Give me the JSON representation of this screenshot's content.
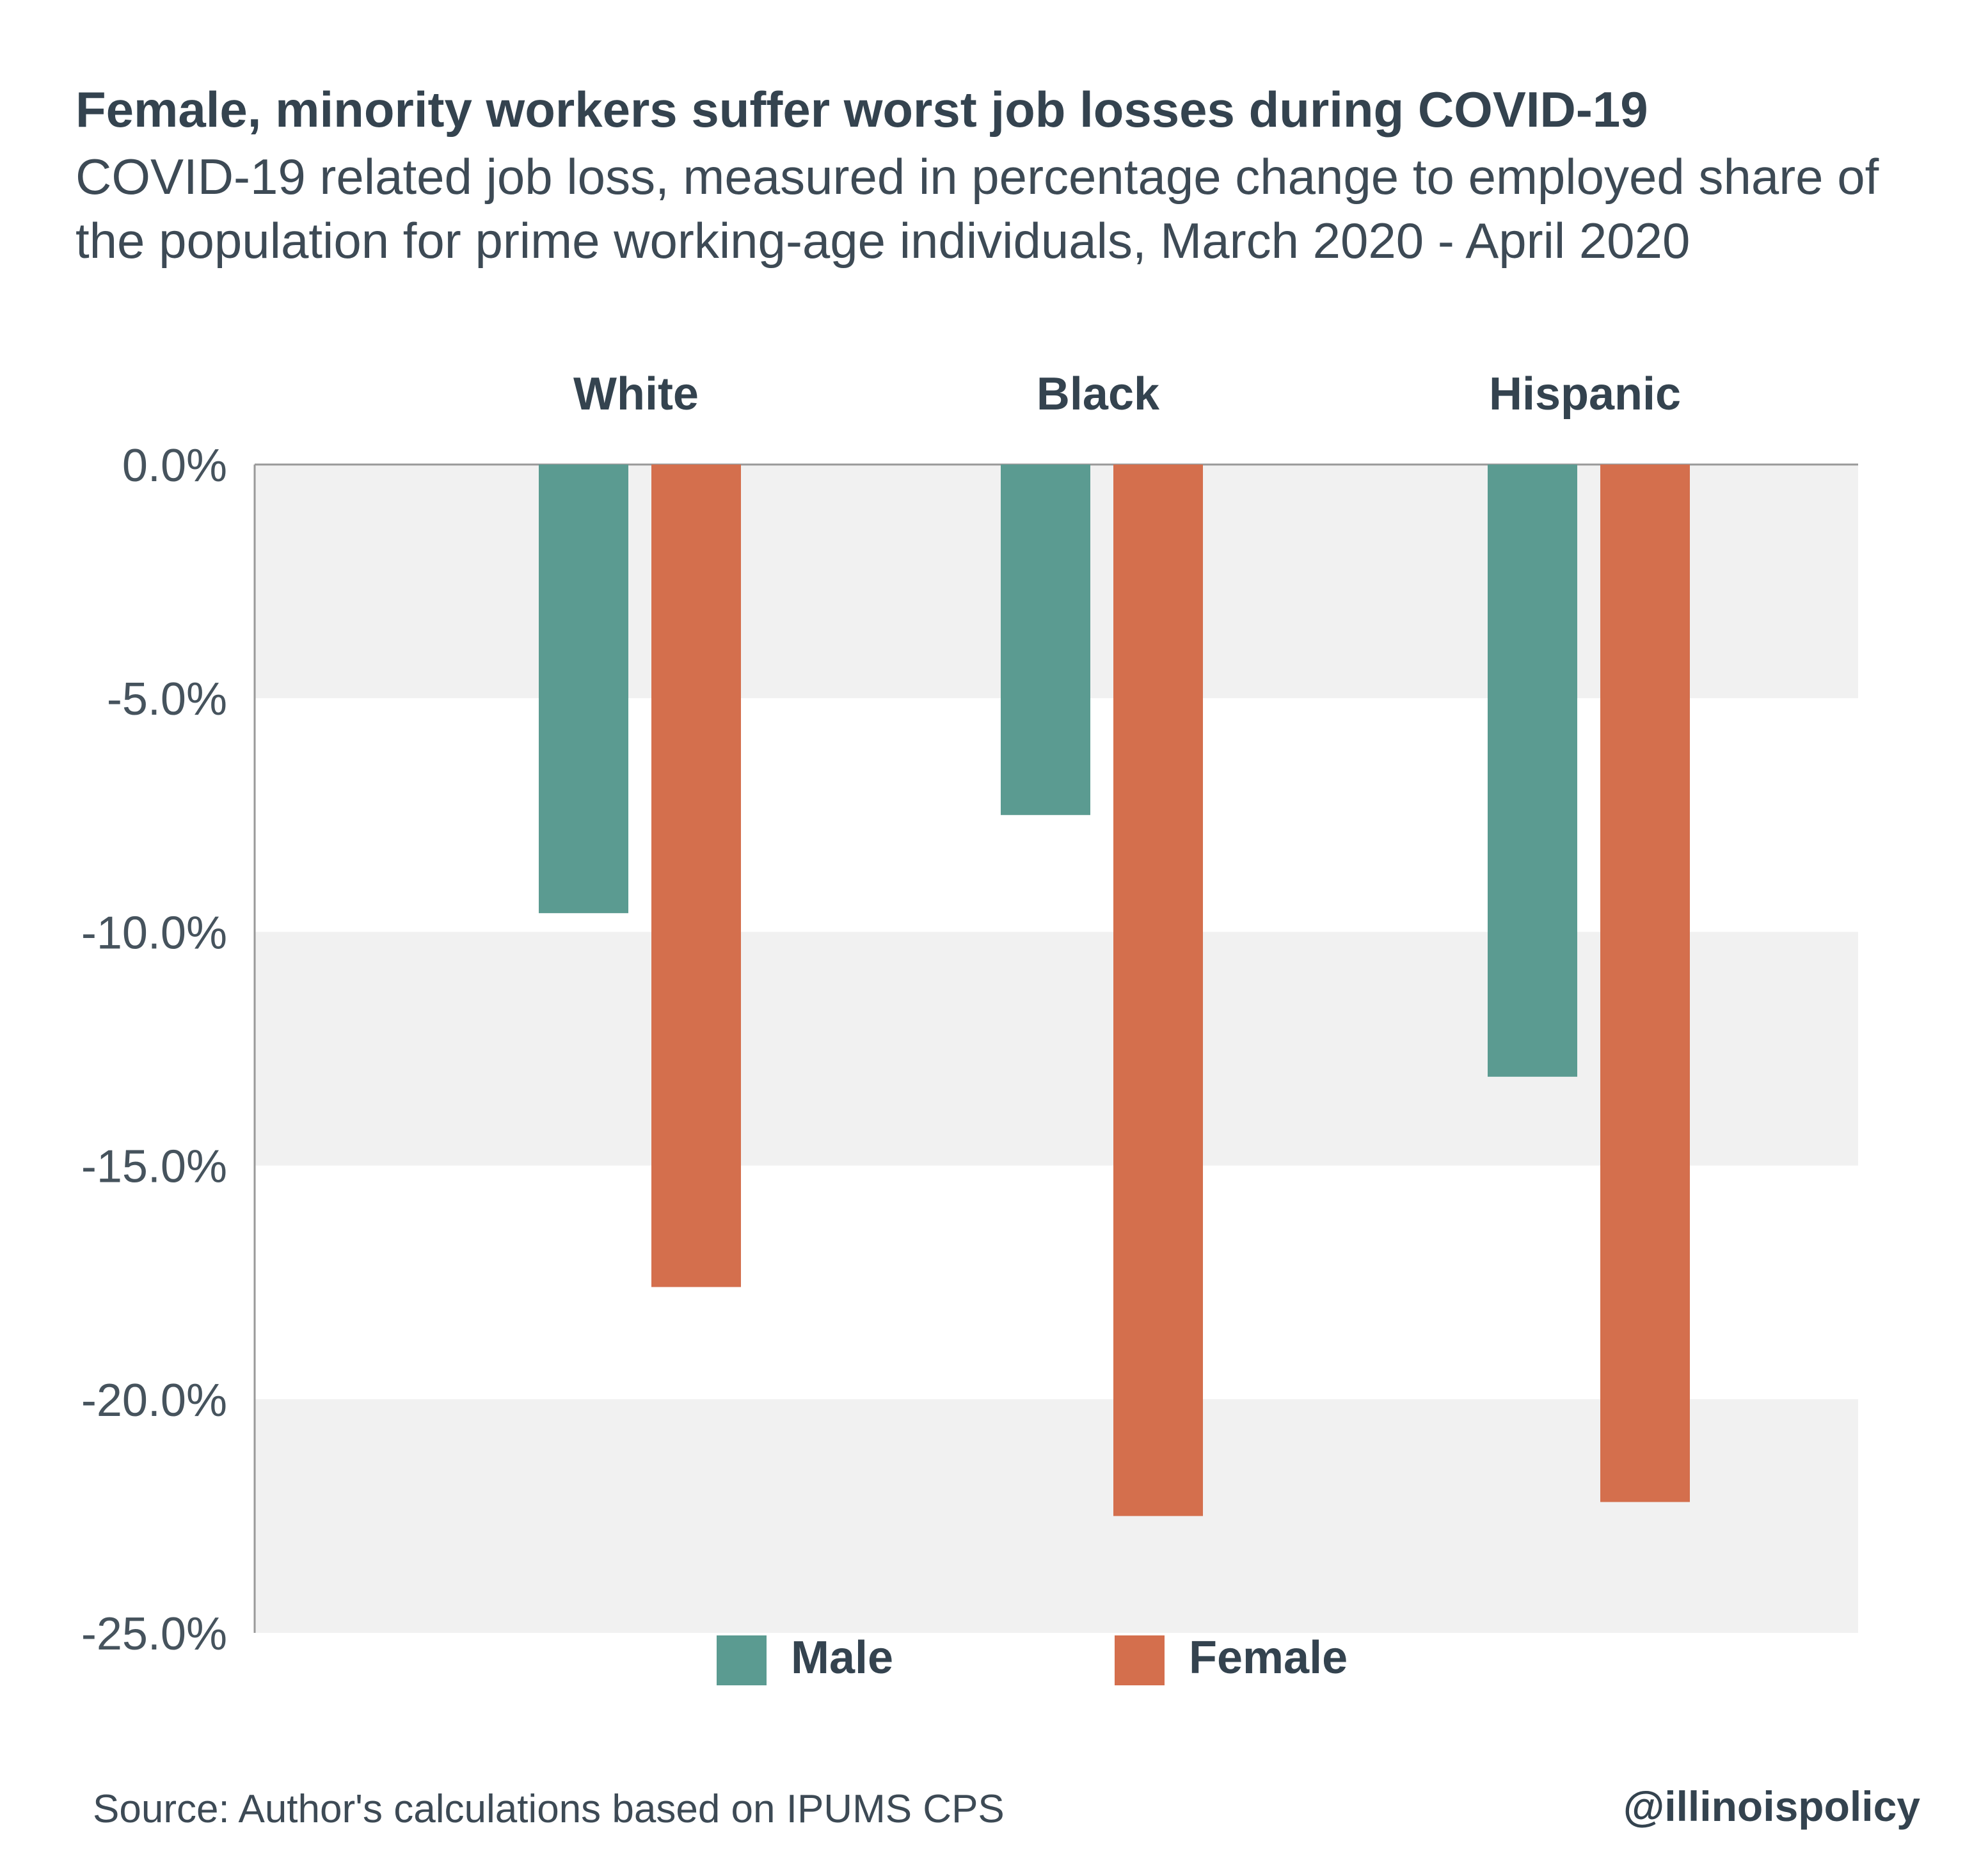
{
  "header": {
    "title": "Female, minority workers suffer worst job losses during COVID-19",
    "subtitle": "COVID-19 related job loss, measured in percentage change to employed share of the population for prime working-age individuals, March 2020 - April 2020"
  },
  "footer": {
    "source": "Source: Author's calculations based on  IPUMS CPS",
    "handle": "@illinoispolicy"
  },
  "legend": {
    "male_label": "Male",
    "female_label": "Female"
  },
  "colors": {
    "male": "#5b9b91",
    "female": "#d46f4d",
    "band": "#f1f1f1",
    "axis": "#999999",
    "text": "#34434f"
  },
  "chart_data": {
    "type": "bar",
    "categories": [
      "White",
      "Black",
      "Hispanic"
    ],
    "series": [
      {
        "name": "Male",
        "values": [
          -9.6,
          -7.5,
          -13.1
        ]
      },
      {
        "name": "Female",
        "values": [
          -17.6,
          -22.5,
          -22.2
        ]
      }
    ],
    "ylim": [
      -25,
      0
    ],
    "yticks": [
      0,
      -5,
      -10,
      -15,
      -20,
      -25
    ],
    "ytick_labels": [
      "0.0%",
      "-5.0%",
      "-10.0%",
      "-15.0%",
      "-20.0%",
      "-25.0%"
    ],
    "grid": "alternating bands",
    "legend_position": "bottom",
    "category_labels_position": "top"
  }
}
